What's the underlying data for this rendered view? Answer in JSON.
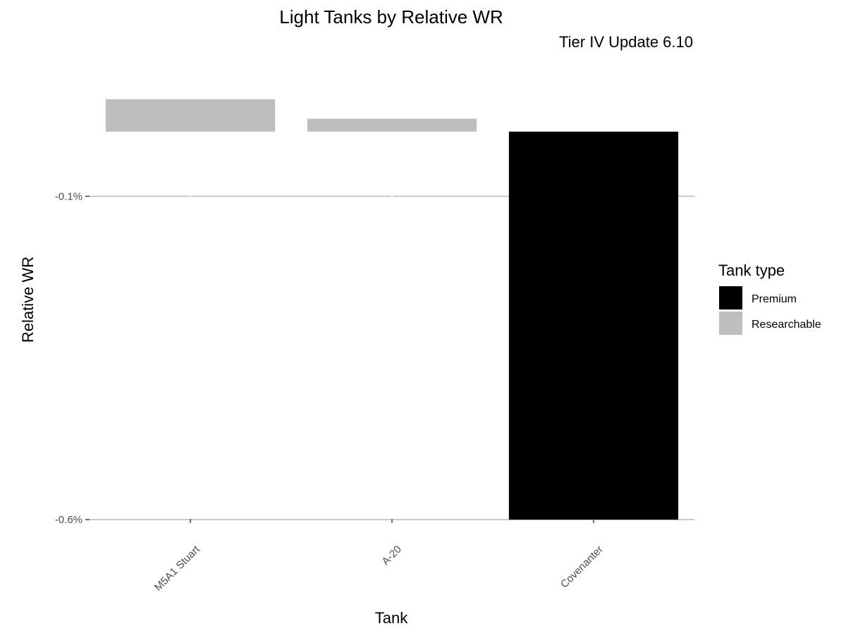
{
  "chart_data": {
    "type": "bar",
    "title": "Light Tanks by Relative WR",
    "subtitle": "Tier IV Update 6.10",
    "xlabel": "Tank",
    "ylabel": "Relative WR",
    "categories": [
      "M5A1 Stuart",
      "A-20",
      "Covenanter"
    ],
    "values": [
      0.05,
      0.02,
      -0.6
    ],
    "tank_type": [
      "Researchable",
      "Researchable",
      "Premium"
    ],
    "y_ticks": [
      {
        "value": -0.1,
        "label": "-0.1%"
      },
      {
        "value": -0.6,
        "label": "-0.6%"
      }
    ],
    "ylim": [
      -0.625,
      0.1
    ],
    "grid": true,
    "legend": {
      "title": "Tank type",
      "position": "right",
      "entries": [
        {
          "label": "Premium",
          "color": "#000000"
        },
        {
          "label": "Researchable",
          "color": "#bebebe"
        }
      ]
    }
  }
}
